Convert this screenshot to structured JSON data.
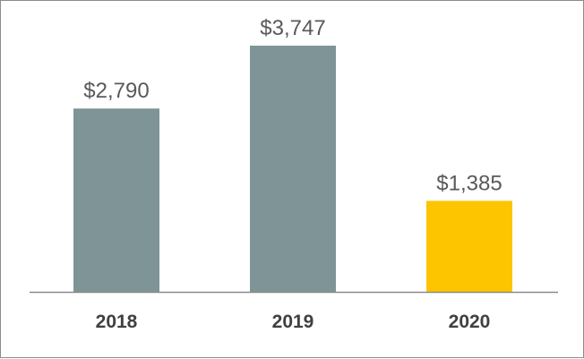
{
  "chart_data": {
    "type": "bar",
    "categories": [
      "2018",
      "2019",
      "2020"
    ],
    "values": [
      2790,
      3747,
      1385
    ],
    "value_labels": [
      "$2,790",
      "$3,747",
      "$1,385"
    ],
    "colors": [
      "#7f9497",
      "#7f9497",
      "#fcc500"
    ],
    "baseline_color": "#8a8a8a",
    "title": "",
    "xlabel": "",
    "ylabel": "",
    "ylim": [
      0,
      3747
    ],
    "grid": false,
    "legend": "none"
  }
}
